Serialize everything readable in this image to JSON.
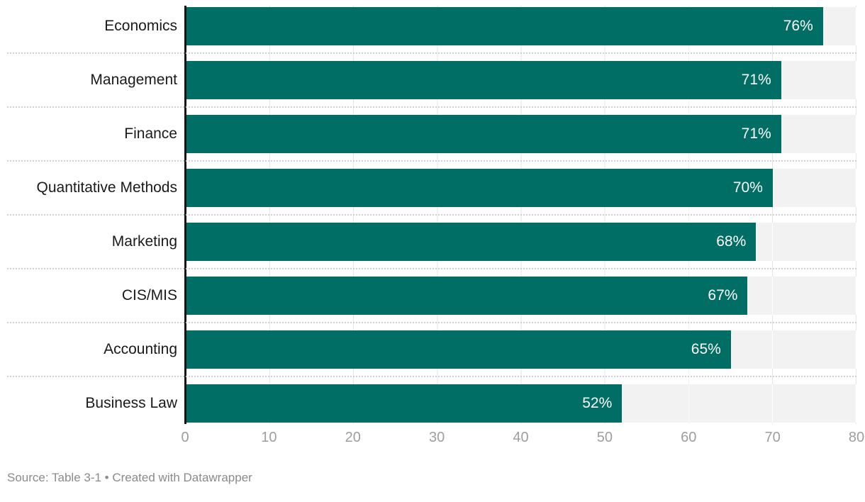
{
  "chart_data": {
    "type": "bar",
    "orientation": "horizontal",
    "categories": [
      "Economics",
      "Management",
      "Finance",
      "Quantitative Methods",
      "Marketing",
      "CIS/MIS",
      "Accounting",
      "Business Law"
    ],
    "values": [
      76,
      71,
      71,
      70,
      68,
      67,
      65,
      52
    ],
    "value_labels": [
      "76%",
      "71%",
      "71%",
      "70%",
      "68%",
      "67%",
      "65%",
      "52%"
    ],
    "x_ticks": [
      "0",
      "10",
      "20",
      "30",
      "40",
      "50",
      "60",
      "70",
      "80"
    ],
    "xlim": [
      0,
      80
    ],
    "grid": true,
    "legend": "none",
    "title": "",
    "xlabel": "",
    "ylabel": "",
    "bar_color": "#006e64",
    "track_color": "#f2f2f2"
  },
  "footer": {
    "source_line": "Source: Table 3-1 • Created with Datawrapper"
  }
}
